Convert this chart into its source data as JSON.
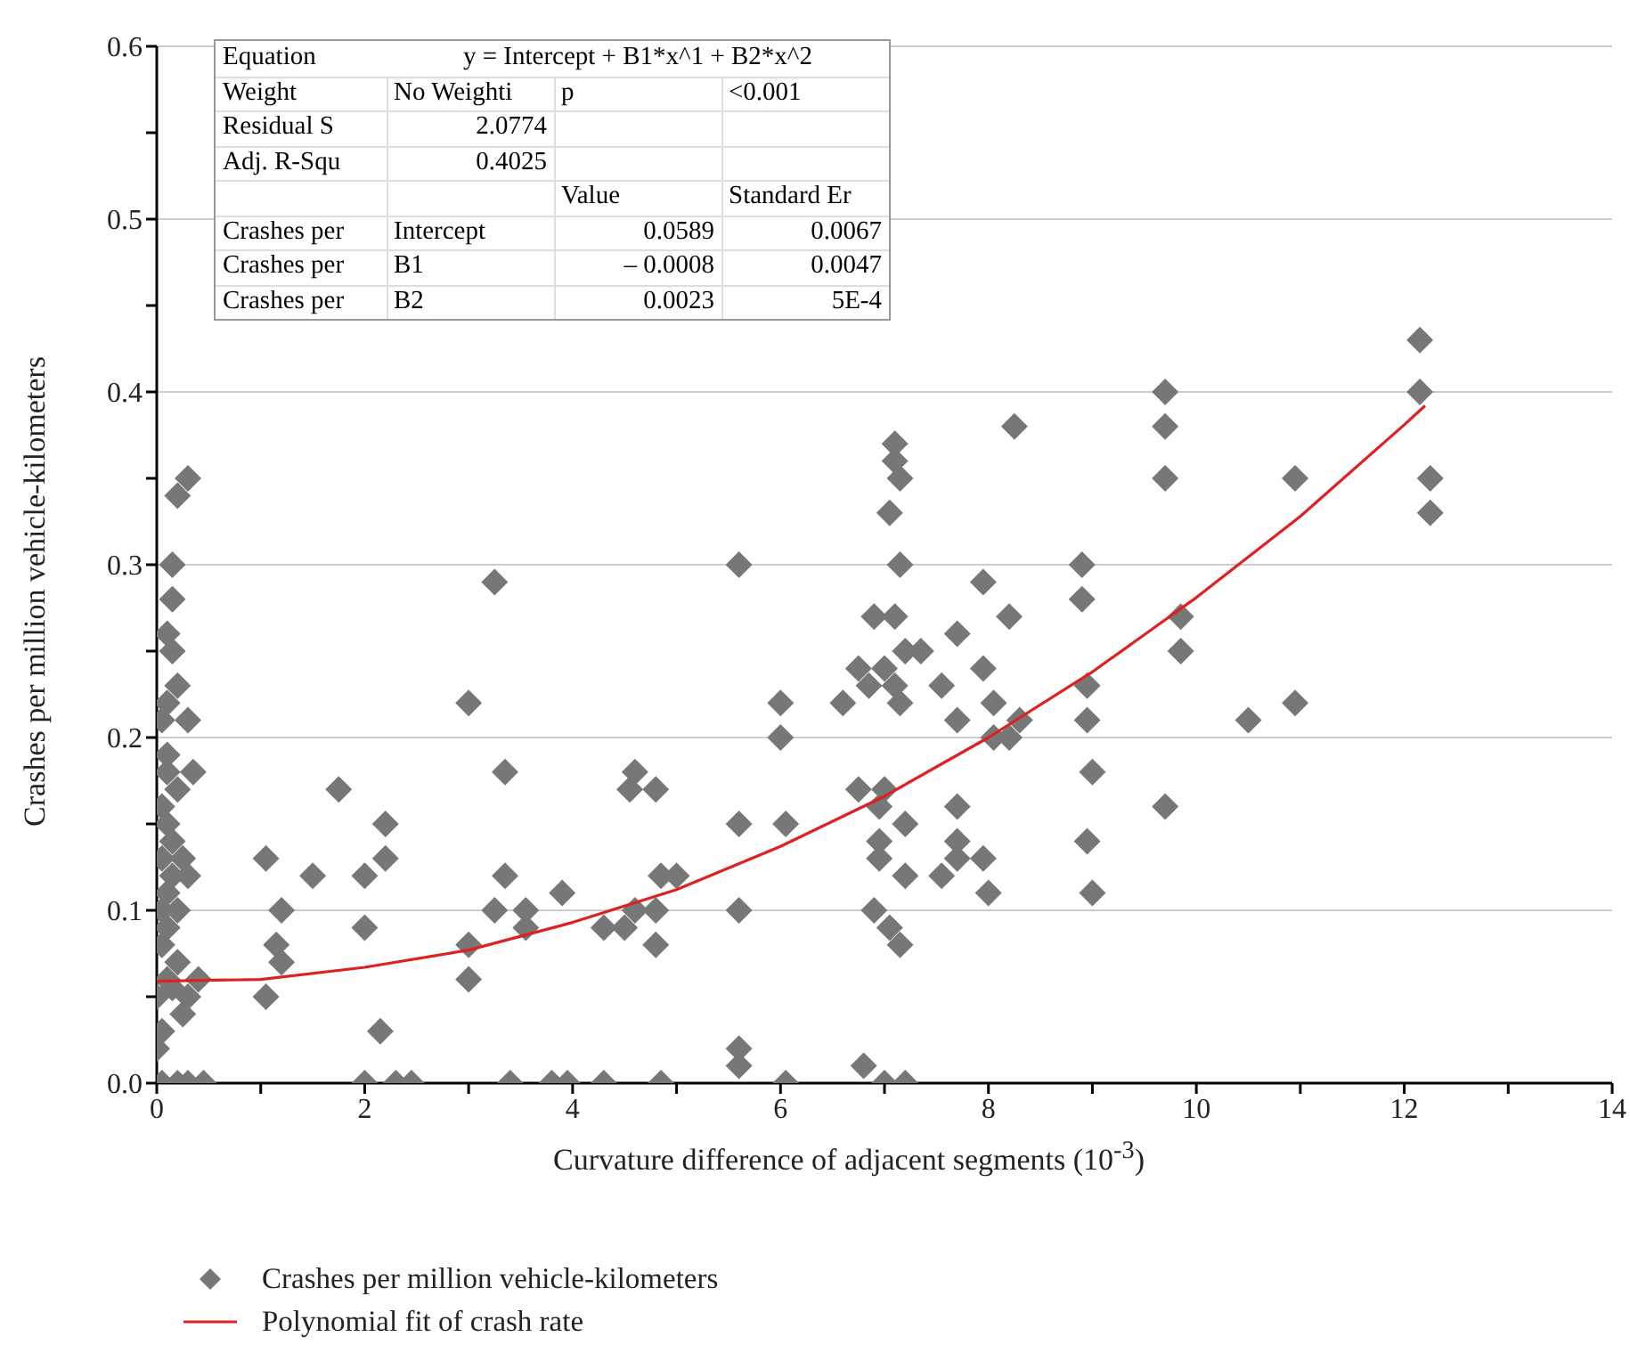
{
  "chart_data": {
    "type": "scatter",
    "xlabel": "Curvature difference of adjacent segments (10$^{-3}$)",
    "ylabel": "Crashes per million vehicle-kilometers",
    "xlim": [
      0,
      14
    ],
    "xticks": [
      0,
      {
        "value": 1,
        "label": null
      },
      2,
      {
        "value": 3,
        "label": null
      },
      4,
      {
        "value": 5,
        "label": null
      },
      6,
      {
        "value": 7,
        "label": null
      },
      8,
      {
        "value": 9,
        "label": null
      },
      10,
      {
        "value": 11,
        "label": null
      },
      12,
      {
        "value": 13,
        "label": null
      },
      14
    ],
    "ylim": [
      0,
      0.6
    ],
    "yticks": [
      {
        "value": 0,
        "label": "0.0"
      },
      {
        "value": 0.05,
        "label": null
      },
      {
        "value": 0.1,
        "label": "0.1"
      },
      {
        "value": 0.15,
        "label": null
      },
      {
        "value": 0.2,
        "label": "0.2"
      },
      {
        "value": 0.25,
        "label": null
      },
      {
        "value": 0.3,
        "label": "0.3"
      },
      {
        "value": 0.35,
        "label": null
      },
      {
        "value": 0.4,
        "label": "0.4"
      },
      {
        "value": 0.45,
        "label": null
      },
      {
        "value": 0.5,
        "label": "0.5"
      },
      {
        "value": 0.55,
        "label": null
      },
      {
        "value": 0.6,
        "label": "0.6"
      }
    ],
    "grid": "y",
    "legend": "bottom",
    "annotations": [
      "Equation",
      "y = Intercept + B1*x^1 + B2*x^2",
      "Weight",
      "No Weighti",
      "p",
      "<0.001",
      "Residual S",
      "2.0774",
      "Adj. R-Squ",
      "0.4025",
      "Value",
      "Standard Er",
      "Crashes per",
      "Intercept",
      "0.0589",
      "0.0067",
      "Crashes per",
      "B1",
      "– 0.0008",
      "0.0047",
      "Crashes per",
      "B2",
      "0.0023",
      "5E-4"
    ],
    "series": [
      {
        "name": "Crashes per million vehicle-kilometers",
        "marker": "diamond",
        "color": "#777777",
        "x": [
          0.2,
          0.3,
          0.15,
          0.15,
          0.1,
          0.15,
          0.2,
          0.1,
          0.05,
          0.3,
          0.1,
          0.1,
          0.35,
          0.2,
          0.05,
          0.1,
          0.15,
          0.05,
          0.25,
          0.15,
          0.3,
          0.1,
          0.05,
          0.2,
          0.1,
          0.05,
          0.2,
          0.1,
          0.4,
          0.3,
          0.25,
          0.05,
          0,
          0.05,
          0.2,
          0.3,
          0.45,
          0,
          0.15,
          1.05,
          1.05,
          1.15,
          1.2,
          1.2,
          1.5,
          1.75,
          2,
          2,
          2,
          2.15,
          2.2,
          2.2,
          2.3,
          2.45,
          3,
          3,
          3,
          3.25,
          3.25,
          3.35,
          3.35,
          3.4,
          3.55,
          3.55,
          3.8,
          3.9,
          3.95,
          4.3,
          4.3,
          4.5,
          4.55,
          4.6,
          4.6,
          4.8,
          4.8,
          4.8,
          4.85,
          4.85,
          5,
          5.6,
          5.6,
          5.6,
          5.6,
          5.6,
          6,
          6,
          6.05,
          6.05,
          6.6,
          6.75,
          6.75,
          6.8,
          6.9,
          6.85,
          6.9,
          6.95,
          6.95,
          6.95,
          7,
          7,
          7.05,
          7.05,
          7.1,
          7.1,
          7.15,
          7.1,
          7.1,
          7.15,
          7.15,
          7.15,
          7.2,
          7.2,
          7.2,
          7.2,
          7,
          7.35,
          7.55,
          7.55,
          7.7,
          7.7,
          7.7,
          7.7,
          7.7,
          7.95,
          7.95,
          7.95,
          8,
          8.05,
          8.05,
          8.2,
          8.2,
          8.25,
          8.3,
          8.9,
          8.9,
          8.95,
          8.95,
          8.95,
          9,
          9,
          9.7,
          9.7,
          9.7,
          9.7,
          9.85,
          9.85,
          10.5,
          10.95,
          10.95,
          12.15,
          12.15,
          12.25,
          12.25
        ],
        "values": [
          0.34,
          0.35,
          0.3,
          0.28,
          0.26,
          0.25,
          0.23,
          0.22,
          0.21,
          0.21,
          0.19,
          0.18,
          0.18,
          0.17,
          0.16,
          0.15,
          0.14,
          0.13,
          0.13,
          0.12,
          0.12,
          0.11,
          0.1,
          0.1,
          0.09,
          0.08,
          0.07,
          0.06,
          0.06,
          0.05,
          0.04,
          0.03,
          0.02,
          0,
          0,
          0,
          0,
          0.05,
          0.055,
          0.13,
          0.05,
          0.08,
          0.07,
          0.1,
          0.12,
          0.17,
          0.12,
          0.09,
          0,
          0.03,
          0.13,
          0.15,
          0,
          0,
          0.22,
          0.08,
          0.06,
          0.29,
          0.1,
          0.18,
          0.12,
          0,
          0.1,
          0.09,
          0,
          0.11,
          0,
          0.09,
          0,
          0.09,
          0.17,
          0.18,
          0.1,
          0.17,
          0.1,
          0.08,
          0.12,
          0,
          0.12,
          0.3,
          0.15,
          0.1,
          0.02,
          0.01,
          0.22,
          0.2,
          0.15,
          0,
          0.22,
          0.17,
          0.24,
          0.01,
          0.27,
          0.23,
          0.1,
          0.14,
          0.13,
          0.16,
          0.24,
          0.17,
          0.09,
          0.33,
          0.36,
          0.37,
          0.35,
          0.27,
          0.23,
          0.3,
          0.22,
          0.08,
          0.25,
          0.15,
          0.12,
          0,
          0,
          0.25,
          0.23,
          0.12,
          0.26,
          0.16,
          0.14,
          0.21,
          0.13,
          0.29,
          0.24,
          0.13,
          0.11,
          0.22,
          0.2,
          0.27,
          0.2,
          0.38,
          0.21,
          0.3,
          0.28,
          0.23,
          0.21,
          0.14,
          0.18,
          0.11,
          0.4,
          0.38,
          0.35,
          0.16,
          0.27,
          0.25,
          0.21,
          0.22,
          0.35,
          0.43,
          0.4,
          0.35,
          0.33
        ]
      },
      {
        "name": "Polynomial fit of crash rate",
        "type": "line",
        "marker": "none",
        "color": "#e02020",
        "x": [
          0,
          1,
          2,
          3,
          4,
          5,
          6,
          7,
          8,
          9,
          10,
          11,
          12,
          12.2
        ],
        "values": [
          0.059,
          0.06,
          0.067,
          0.077,
          0.093,
          0.112,
          0.137,
          0.166,
          0.2,
          0.238,
          0.281,
          0.328,
          0.381,
          0.392
        ]
      }
    ]
  }
}
